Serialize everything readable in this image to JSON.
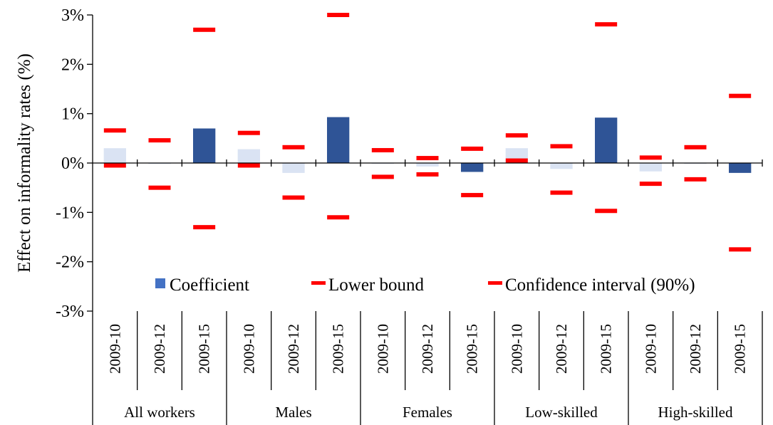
{
  "chart_data": {
    "type": "bar",
    "title": "",
    "ylabel": "Effect on  informality rates (%)",
    "xlabel": "",
    "ylim": [
      -3,
      3
    ],
    "y_ticks": [
      "3%",
      "2%",
      "1%",
      "0%",
      "-1%",
      "-2%",
      "-3%"
    ],
    "y_tick_values": [
      3,
      2,
      1,
      0,
      -1,
      -2,
      -3
    ],
    "groups": [
      {
        "label": "All workers",
        "periods": [
          "2009-10",
          "2009-12",
          "2009-15"
        ]
      },
      {
        "label": "Males",
        "periods": [
          "2009-10",
          "2009-12",
          "2009-15"
        ]
      },
      {
        "label": "Females",
        "periods": [
          "2009-10",
          "2009-12",
          "2009-15"
        ]
      },
      {
        "label": "Low-skilled",
        "periods": [
          "2009-10",
          "2009-12",
          "2009-15"
        ]
      },
      {
        "label": "High-skilled",
        "periods": [
          "2009-10",
          "2009-12",
          "2009-15"
        ]
      }
    ],
    "series": [
      {
        "name": "Coefficient",
        "values": [
          0.3,
          -0.02,
          0.7,
          0.28,
          -0.2,
          0.93,
          0.0,
          -0.07,
          -0.18,
          0.3,
          -0.12,
          0.92,
          -0.17,
          0.0,
          -0.2
        ]
      },
      {
        "name": "Lower bound",
        "values": [
          -0.05,
          -0.5,
          -1.3,
          -0.05,
          -0.7,
          -1.1,
          -0.28,
          -0.23,
          -0.65,
          0.05,
          -0.6,
          -0.97,
          -0.42,
          -0.33,
          -1.75
        ]
      },
      {
        "name": "Confidence interval (90%)",
        "values": [
          0.66,
          0.46,
          2.7,
          0.61,
          0.32,
          3.0,
          0.26,
          0.1,
          0.29,
          0.56,
          0.34,
          2.81,
          0.11,
          0.32,
          1.36
        ]
      }
    ],
    "significant": [
      false,
      false,
      true,
      false,
      false,
      true,
      false,
      false,
      true,
      false,
      false,
      true,
      false,
      false,
      true
    ],
    "legend_position": "bottom-inside",
    "grid": false,
    "colors": {
      "significant_bar": "#2f5496",
      "insignificant_bar": "#dae3f3",
      "legend_coefficient": "#4472c4",
      "bounds": "#ff0000"
    }
  }
}
